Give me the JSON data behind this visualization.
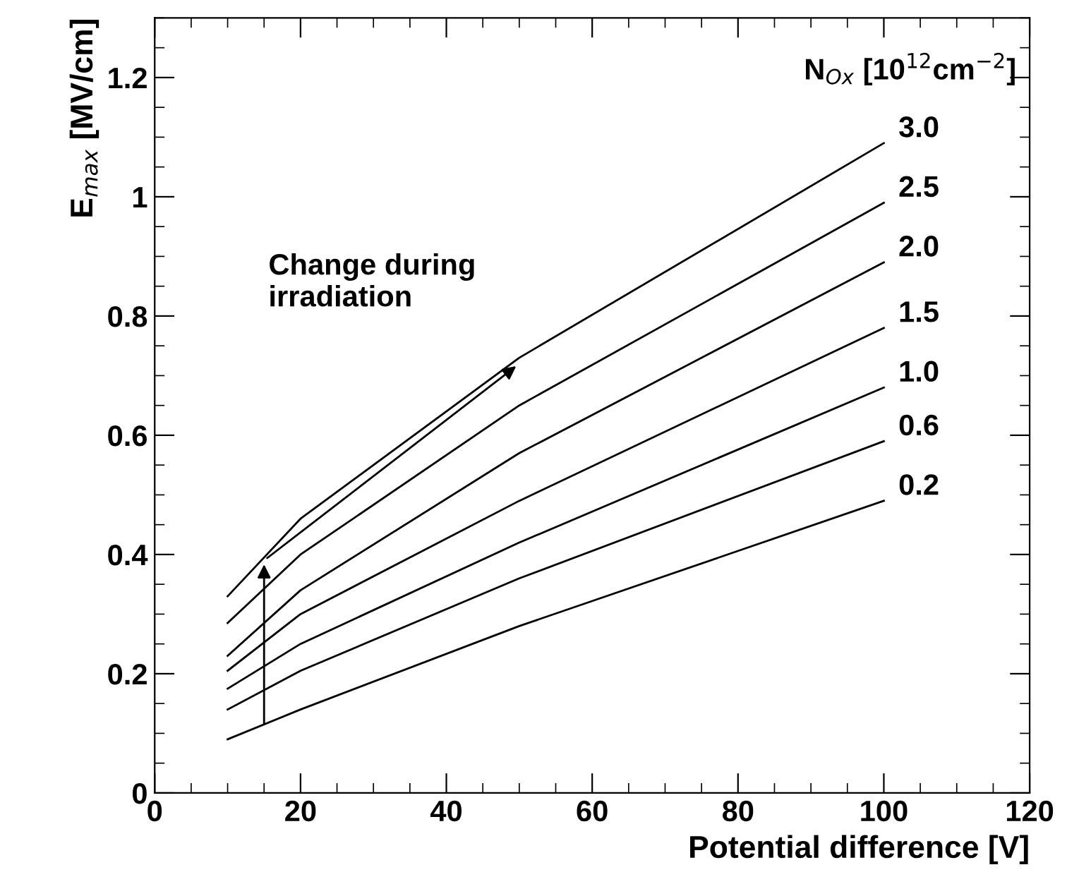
{
  "chart_data": {
    "type": "line",
    "xlabel": "Potential difference [V]",
    "ylabel": "E$_{max}$ [MV/cm]",
    "legend_title": "N$_{Ox}$ [10$^{12}$cm$^{−2}$]",
    "x": [
      10,
      20,
      50,
      100
    ],
    "series": [
      {
        "name": "3.0",
        "color": "#000000",
        "values": [
          0.33,
          0.46,
          0.73,
          1.09
        ]
      },
      {
        "name": "2.5",
        "color": "#000000",
        "values": [
          0.285,
          0.4,
          0.65,
          0.99
        ]
      },
      {
        "name": "2.0",
        "color": "#000000",
        "values": [
          0.23,
          0.34,
          0.57,
          0.89
        ]
      },
      {
        "name": "1.5",
        "color": "#000000",
        "values": [
          0.205,
          0.3,
          0.49,
          0.78
        ]
      },
      {
        "name": "1.0",
        "color": "#000000",
        "values": [
          0.175,
          0.25,
          0.42,
          0.68
        ]
      },
      {
        "name": "0.6",
        "color": "#000000",
        "values": [
          0.14,
          0.205,
          0.36,
          0.59
        ]
      },
      {
        "name": "0.2",
        "color": "#000000",
        "values": [
          0.09,
          0.14,
          0.28,
          0.49
        ]
      }
    ],
    "annotations": [
      "Change during\nirradiation"
    ],
    "xlim": [
      0,
      120
    ],
    "ylim": [
      0,
      1.3
    ],
    "xticks": [
      0,
      20,
      40,
      60,
      80,
      100,
      120
    ],
    "yticks": [
      0,
      0.2,
      0.4,
      0.6,
      0.8,
      1,
      1.2
    ],
    "grid": false,
    "legend": false,
    "marker": "none",
    "line_style": "solid"
  }
}
